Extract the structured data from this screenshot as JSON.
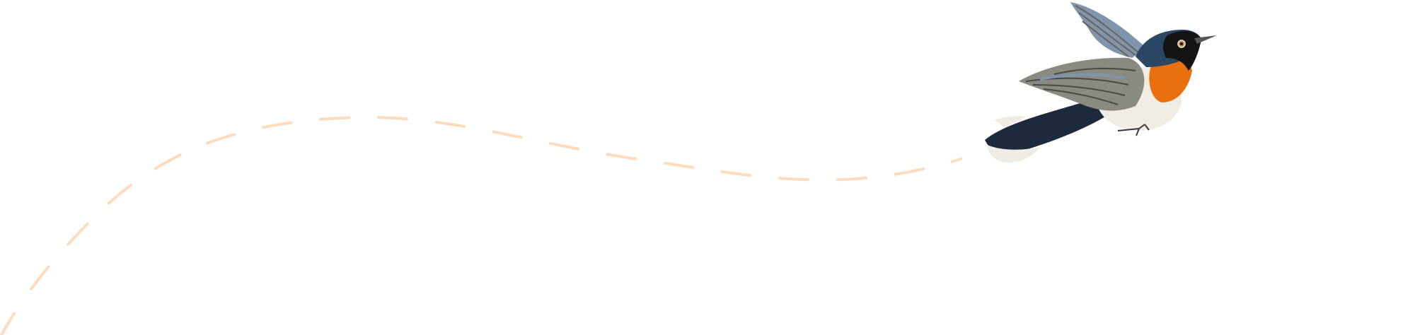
{
  "illustration": {
    "subject": "bird-in-flight",
    "colors": {
      "dashed_path": "#fcdcbc",
      "wing_gray": "#8a8a80",
      "wing_blue": "#7f95ae",
      "head_blue": "#2c4766",
      "mask_black": "#141414",
      "throat_orange": "#e8700f",
      "belly_white": "#f1ede4",
      "tail_dark": "#1c2a3c"
    }
  }
}
